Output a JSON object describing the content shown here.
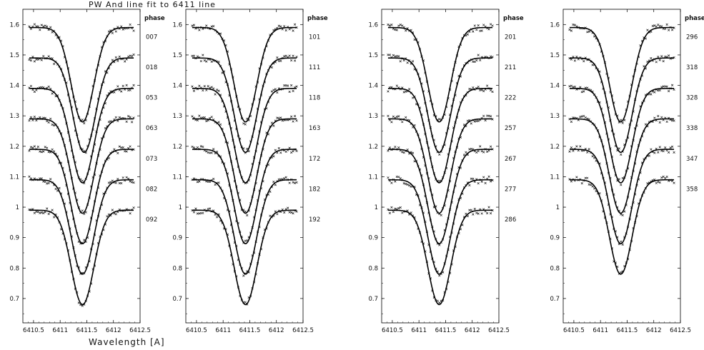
{
  "header": {
    "title": "PW And line fit to 6411 line",
    "xlabel": "Wavelength [A]"
  },
  "chart_data": [
    {
      "type": "line",
      "panel_label": "phase",
      "xlim": [
        6410.3,
        6412.5
      ],
      "ylim": [
        0.62,
        1.65
      ],
      "x_ticks": [
        6410.5,
        6411,
        6411.5,
        6412,
        6412.5
      ],
      "x_tick_labels": [
        "6410.5",
        "6411",
        "6411.5",
        "6412",
        "6412.5"
      ],
      "y_ticks": [
        0.7,
        0.8,
        0.9,
        1.0,
        1.1,
        1.2,
        1.3,
        1.4,
        1.5,
        1.6
      ],
      "y_tick_labels": [
        "0.7",
        "0.8",
        "0.9",
        "1",
        "1.1",
        "1.2",
        "1.3",
        "1.4",
        "1.5",
        "1.6"
      ],
      "line_center": 6411.42,
      "line_width": 0.38,
      "series": [
        {
          "name": "007",
          "continuum": 1.59,
          "depth": 0.31,
          "wing_slope": 0.0,
          "shift": 0.0
        },
        {
          "name": "018",
          "continuum": 1.49,
          "depth": 0.31,
          "wing_slope": 0.0,
          "shift": 0.03
        },
        {
          "name": "053",
          "continuum": 1.39,
          "depth": 0.31,
          "wing_slope": 0.0,
          "shift": 0.0
        },
        {
          "name": "063",
          "continuum": 1.29,
          "depth": 0.31,
          "wing_slope": 0.0,
          "shift": 0.0
        },
        {
          "name": "073",
          "continuum": 1.19,
          "depth": 0.31,
          "wing_slope": 0.0,
          "shift": 0.0
        },
        {
          "name": "082",
          "continuum": 1.09,
          "depth": 0.31,
          "wing_slope": 0.0,
          "shift": 0.0
        },
        {
          "name": "092",
          "continuum": 0.99,
          "depth": 0.31,
          "wing_slope": 0.0,
          "shift": 0.0
        }
      ]
    },
    {
      "type": "line",
      "panel_label": "phase",
      "xlim": [
        6410.3,
        6412.5
      ],
      "ylim": [
        0.62,
        1.65
      ],
      "x_ticks": [
        6410.5,
        6411,
        6411.5,
        6412,
        6412.5
      ],
      "x_tick_labels": [
        "6410.5",
        "6411",
        "6411.5",
        "6412",
        "6412.5"
      ],
      "y_ticks": [
        0.7,
        0.8,
        0.9,
        1.0,
        1.1,
        1.2,
        1.3,
        1.4,
        1.5,
        1.6
      ],
      "y_tick_labels": [
        "0.7",
        "0.8",
        "0.9",
        "1",
        "1.1",
        "1.2",
        "1.3",
        "1.4",
        "1.5",
        "1.6"
      ],
      "line_center": 6411.42,
      "line_width": 0.38,
      "series": [
        {
          "name": "101",
          "continuum": 1.59,
          "depth": 0.31,
          "wing_slope": 0.0,
          "shift": 0.0
        },
        {
          "name": "111",
          "continuum": 1.49,
          "depth": 0.31,
          "wing_slope": 0.0,
          "shift": 0.0
        },
        {
          "name": "118",
          "continuum": 1.39,
          "depth": 0.31,
          "wing_slope": 0.0,
          "shift": 0.0
        },
        {
          "name": "163",
          "continuum": 1.29,
          "depth": 0.31,
          "wing_slope": 0.0,
          "shift": 0.0
        },
        {
          "name": "172",
          "continuum": 1.19,
          "depth": 0.31,
          "wing_slope": 0.0,
          "shift": 0.0
        },
        {
          "name": "182",
          "continuum": 1.09,
          "depth": 0.31,
          "wing_slope": 0.0,
          "shift": 0.0
        },
        {
          "name": "192",
          "continuum": 0.99,
          "depth": 0.31,
          "wing_slope": 0.0,
          "shift": 0.0
        }
      ]
    },
    {
      "type": "line",
      "panel_label": "phase",
      "xlim": [
        6410.3,
        6412.5
      ],
      "ylim": [
        0.62,
        1.65
      ],
      "x_ticks": [
        6410.5,
        6411,
        6411.5,
        6412,
        6412.5
      ],
      "x_tick_labels": [
        "6410.5",
        "6411",
        "6411.5",
        "6412",
        "6412.5"
      ],
      "y_ticks": [
        0.7,
        0.8,
        0.9,
        1.0,
        1.1,
        1.2,
        1.3,
        1.4,
        1.5,
        1.6
      ],
      "y_tick_labels": [
        "0.7",
        "0.8",
        "0.9",
        "1",
        "1.1",
        "1.2",
        "1.3",
        "1.4",
        "1.5",
        "1.6"
      ],
      "line_center": 6411.38,
      "line_width": 0.38,
      "series": [
        {
          "name": "201",
          "continuum": 1.59,
          "depth": 0.31,
          "wing_slope": 0.0,
          "shift": 0.0
        },
        {
          "name": "211",
          "continuum": 1.49,
          "depth": 0.31,
          "wing_slope": 0.0,
          "shift": 0.0
        },
        {
          "name": "222",
          "continuum": 1.39,
          "depth": 0.31,
          "wing_slope": 0.0,
          "shift": 0.0
        },
        {
          "name": "257",
          "continuum": 1.29,
          "depth": 0.31,
          "wing_slope": 0.0,
          "shift": 0.0
        },
        {
          "name": "267",
          "continuum": 1.19,
          "depth": 0.31,
          "wing_slope": 0.0,
          "shift": 0.0
        },
        {
          "name": "277",
          "continuum": 1.09,
          "depth": 0.31,
          "wing_slope": 0.0,
          "shift": 0.0
        },
        {
          "name": "286",
          "continuum": 0.99,
          "depth": 0.31,
          "wing_slope": 0.0,
          "shift": 0.0
        }
      ]
    },
    {
      "type": "line",
      "panel_label": "phase",
      "xlim": [
        6410.3,
        6412.5
      ],
      "ylim": [
        0.62,
        1.65
      ],
      "x_ticks": [
        6410.5,
        6411,
        6411.5,
        6412,
        6412.5
      ],
      "x_tick_labels": [
        "6410.5",
        "6411",
        "6411.5",
        "6412",
        "6412.5"
      ],
      "y_ticks": [
        0.7,
        0.8,
        0.9,
        1.0,
        1.1,
        1.2,
        1.3,
        1.4,
        1.5,
        1.6
      ],
      "y_tick_labels": [
        "0.7",
        "0.8",
        "0.9",
        "1",
        "1.1",
        "1.2",
        "1.3",
        "1.4",
        "1.5",
        "1.6"
      ],
      "line_center": 6411.38,
      "line_width": 0.38,
      "series": [
        {
          "name": "296",
          "continuum": 1.59,
          "depth": 0.31,
          "wing_slope": 0.0,
          "shift": 0.0
        },
        {
          "name": "318",
          "continuum": 1.49,
          "depth": 0.31,
          "wing_slope": 0.0,
          "shift": 0.0
        },
        {
          "name": "328",
          "continuum": 1.39,
          "depth": 0.31,
          "wing_slope": 0.0,
          "shift": 0.0
        },
        {
          "name": "338",
          "continuum": 1.29,
          "depth": 0.31,
          "wing_slope": 0.0,
          "shift": 0.0
        },
        {
          "name": "347",
          "continuum": 1.19,
          "depth": 0.31,
          "wing_slope": 0.0,
          "shift": 0.0
        },
        {
          "name": "358",
          "continuum": 1.09,
          "depth": 0.31,
          "wing_slope": 0.0,
          "shift": 0.0
        }
      ]
    }
  ]
}
